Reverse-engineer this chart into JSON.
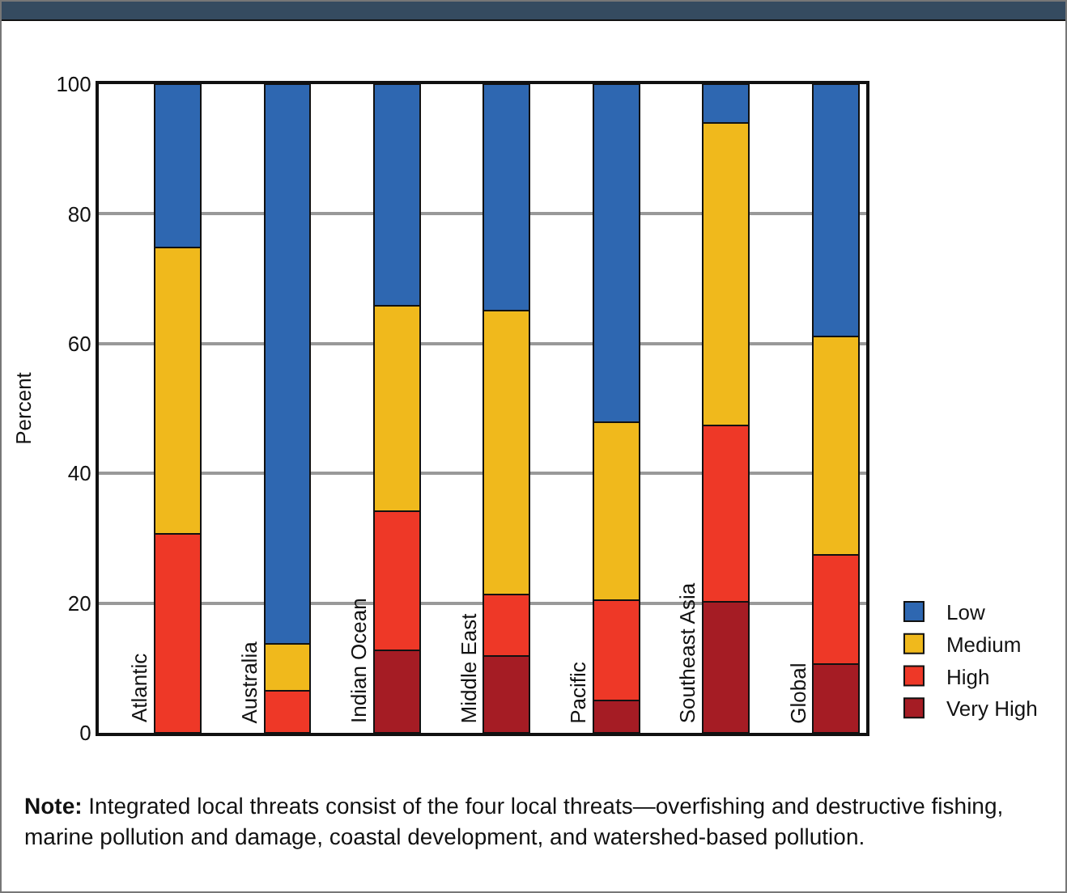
{
  "chart_data": {
    "type": "bar",
    "stacked": true,
    "ylabel": "Percent",
    "categories": [
      "Atlantic",
      "Australia",
      "Indian Ocean",
      "Middle East",
      "Pacific",
      "Southeast Asia",
      "Global"
    ],
    "series": [
      {
        "name": "Very High",
        "color": "#a51c24",
        "values": [
          0,
          0,
          12.7,
          11.8,
          5,
          20.2,
          10.6
        ]
      },
      {
        "name": "High",
        "color": "#ee3827",
        "values": [
          30.7,
          6.5,
          21.5,
          9.5,
          15.4,
          27.2,
          16.8
        ]
      },
      {
        "name": "Medium",
        "color": "#f0b91c",
        "values": [
          44.1,
          7.2,
          31.6,
          43.8,
          27.5,
          46.6,
          33.7
        ]
      },
      {
        "name": "Low",
        "color": "#2e67b1",
        "values": [
          25.2,
          86.3,
          34.2,
          34.9,
          52.1,
          6,
          38.9
        ]
      }
    ],
    "ylim": [
      0,
      100
    ],
    "yticks": [
      0,
      20,
      40,
      60,
      80,
      100
    ],
    "grid": "y",
    "legend": "right",
    "tick_labels": "y",
    "annotations": [
      "Note: Integrated local threats consist of the four local threats—overfishing and destructive fishing, marine pollution and damage, coastal development, and watershed-based pollution."
    ]
  }
}
